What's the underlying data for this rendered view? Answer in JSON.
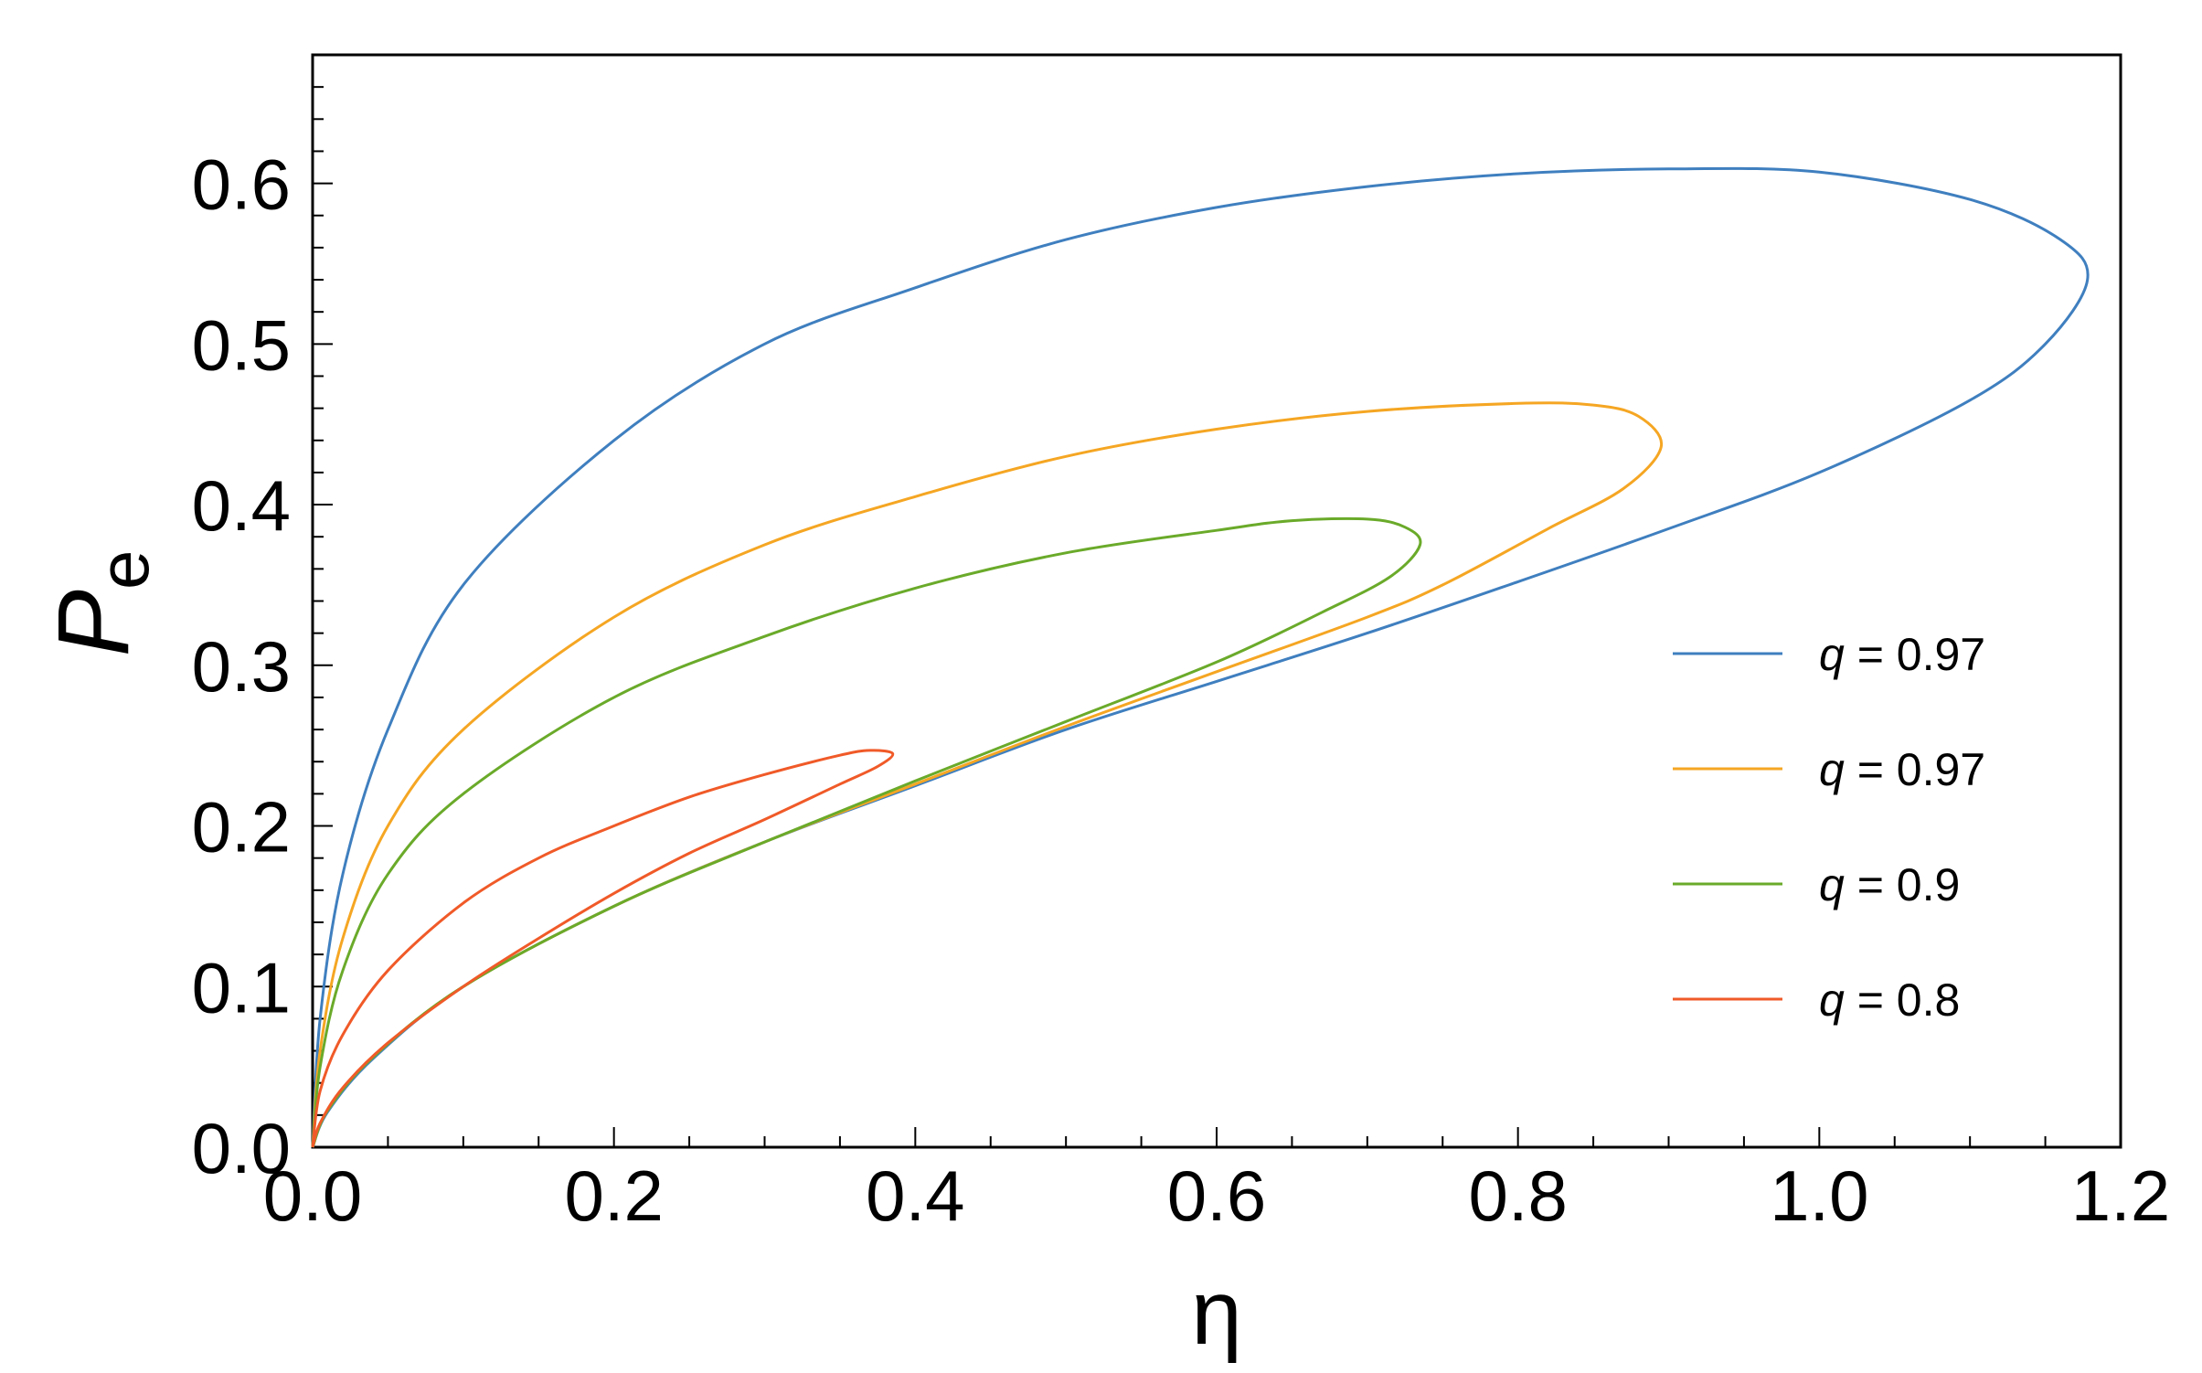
{
  "chart_data": {
    "type": "line",
    "xlabel": "η",
    "ylabel_main": "P",
    "ylabel_sub": "e",
    "xlim": [
      0,
      1.2
    ],
    "ylim": [
      0,
      0.68
    ],
    "x_ticks": [
      "0.0",
      "0.2",
      "0.4",
      "0.6",
      "0.8",
      "1.0",
      "1.2"
    ],
    "x_tick_values": [
      0,
      0.2,
      0.4,
      0.6,
      0.8,
      1.0,
      1.2
    ],
    "y_ticks": [
      "0.0",
      "0.1",
      "0.2",
      "0.3",
      "0.4",
      "0.5",
      "0.6"
    ],
    "y_tick_values": [
      0,
      0.1,
      0.2,
      0.3,
      0.4,
      0.5,
      0.6
    ],
    "grid": false,
    "legend_position": "right",
    "series": [
      {
        "name": "q = 0.97",
        "legend_q": "q",
        "legend_value": "= 0.97",
        "color": "#3f7fbf",
        "points": [
          [
            0,
            0
          ],
          [
            0.005,
            0.08
          ],
          [
            0.02,
            0.17
          ],
          [
            0.05,
            0.26
          ],
          [
            0.1,
            0.35
          ],
          [
            0.2,
            0.44
          ],
          [
            0.3,
            0.5
          ],
          [
            0.4,
            0.535
          ],
          [
            0.5,
            0.565
          ],
          [
            0.6,
            0.585
          ],
          [
            0.7,
            0.598
          ],
          [
            0.8,
            0.606
          ],
          [
            0.9,
            0.609
          ],
          [
            1.0,
            0.607
          ],
          [
            1.1,
            0.59
          ],
          [
            1.16,
            0.565
          ],
          [
            1.178,
            0.54
          ],
          [
            1.15,
            0.5
          ],
          [
            1.1,
            0.465
          ],
          [
            1.0,
            0.42
          ],
          [
            0.9,
            0.385
          ],
          [
            0.8,
            0.352
          ],
          [
            0.7,
            0.32
          ],
          [
            0.6,
            0.29
          ],
          [
            0.5,
            0.26
          ],
          [
            0.4,
            0.225
          ],
          [
            0.3,
            0.19
          ],
          [
            0.2,
            0.15
          ],
          [
            0.1,
            0.1
          ],
          [
            0.04,
            0.055
          ],
          [
            0.01,
            0.022
          ],
          [
            0,
            0
          ]
        ]
      },
      {
        "name": "q = 0.97",
        "legend_q": "q",
        "legend_value": "= 0.97",
        "color": "#f5a623",
        "points": [
          [
            0,
            0
          ],
          [
            0.005,
            0.06
          ],
          [
            0.02,
            0.13
          ],
          [
            0.05,
            0.2
          ],
          [
            0.1,
            0.26
          ],
          [
            0.2,
            0.33
          ],
          [
            0.3,
            0.375
          ],
          [
            0.4,
            0.405
          ],
          [
            0.5,
            0.43
          ],
          [
            0.6,
            0.447
          ],
          [
            0.7,
            0.458
          ],
          [
            0.8,
            0.463
          ],
          [
            0.85,
            0.462
          ],
          [
            0.88,
            0.455
          ],
          [
            0.895,
            0.436
          ],
          [
            0.87,
            0.41
          ],
          [
            0.82,
            0.385
          ],
          [
            0.75,
            0.35
          ],
          [
            0.7,
            0.33
          ],
          [
            0.6,
            0.296
          ],
          [
            0.5,
            0.262
          ],
          [
            0.4,
            0.226
          ],
          [
            0.3,
            0.19
          ],
          [
            0.2,
            0.15
          ],
          [
            0.1,
            0.1
          ],
          [
            0.04,
            0.056
          ],
          [
            0.01,
            0.023
          ],
          [
            0,
            0
          ]
        ]
      },
      {
        "name": "q = 0.9",
        "legend_q": "q",
        "legend_value": "= 0.9",
        "color": "#6aaa2a",
        "points": [
          [
            0,
            0
          ],
          [
            0.005,
            0.05
          ],
          [
            0.02,
            0.11
          ],
          [
            0.05,
            0.17
          ],
          [
            0.1,
            0.22
          ],
          [
            0.2,
            0.28
          ],
          [
            0.3,
            0.318
          ],
          [
            0.4,
            0.348
          ],
          [
            0.5,
            0.37
          ],
          [
            0.6,
            0.384
          ],
          [
            0.65,
            0.39
          ],
          [
            0.7,
            0.391
          ],
          [
            0.725,
            0.386
          ],
          [
            0.735,
            0.375
          ],
          [
            0.715,
            0.355
          ],
          [
            0.67,
            0.333
          ],
          [
            0.6,
            0.302
          ],
          [
            0.5,
            0.265
          ],
          [
            0.4,
            0.228
          ],
          [
            0.3,
            0.19
          ],
          [
            0.2,
            0.15
          ],
          [
            0.1,
            0.1
          ],
          [
            0.04,
            0.056
          ],
          [
            0.01,
            0.023
          ],
          [
            0,
            0
          ]
        ]
      },
      {
        "name": "q = 0.8",
        "legend_q": "q",
        "legend_value": "= 0.8",
        "color": "#f05a28",
        "points": [
          [
            0,
            0
          ],
          [
            0.005,
            0.035
          ],
          [
            0.02,
            0.07
          ],
          [
            0.05,
            0.11
          ],
          [
            0.1,
            0.152
          ],
          [
            0.15,
            0.18
          ],
          [
            0.2,
            0.2
          ],
          [
            0.25,
            0.218
          ],
          [
            0.3,
            0.232
          ],
          [
            0.35,
            0.244
          ],
          [
            0.37,
            0.247
          ],
          [
            0.385,
            0.245
          ],
          [
            0.375,
            0.237
          ],
          [
            0.35,
            0.226
          ],
          [
            0.3,
            0.204
          ],
          [
            0.25,
            0.183
          ],
          [
            0.2,
            0.158
          ],
          [
            0.15,
            0.13
          ],
          [
            0.1,
            0.1
          ],
          [
            0.05,
            0.065
          ],
          [
            0.02,
            0.037
          ],
          [
            0.005,
            0.015
          ],
          [
            0,
            0
          ]
        ]
      }
    ]
  }
}
